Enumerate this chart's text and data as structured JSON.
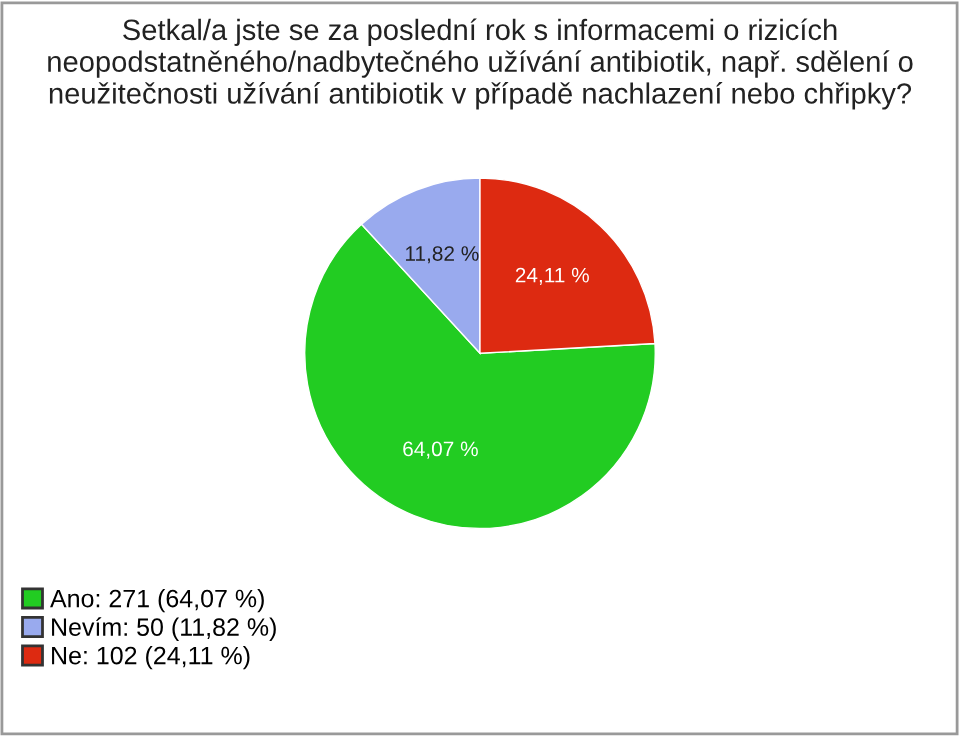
{
  "chart_data": {
    "type": "pie",
    "title": "Setkal/a jste se za poslední rok s informacemi o rizicích\nneopodstatněného/nadbytečného užívání antibiotik, např. sdělení o\nneužitečnosti užívání antibiotik v případě nachlazení nebo chřipky?",
    "categories": [
      "Ano: 271 (64,07 %)",
      "Nevím: 50 (11,82 %)",
      "Ne: 102 (24,11 %)"
    ],
    "values": [
      64.07,
      11.82,
      24.11
    ],
    "value_labels": [
      "64,07 %",
      "11,82 %",
      "24,11 %"
    ],
    "colors": [
      "#22cc22",
      "#99aaee",
      "#dd2a11"
    ],
    "legend": "bottom left"
  }
}
